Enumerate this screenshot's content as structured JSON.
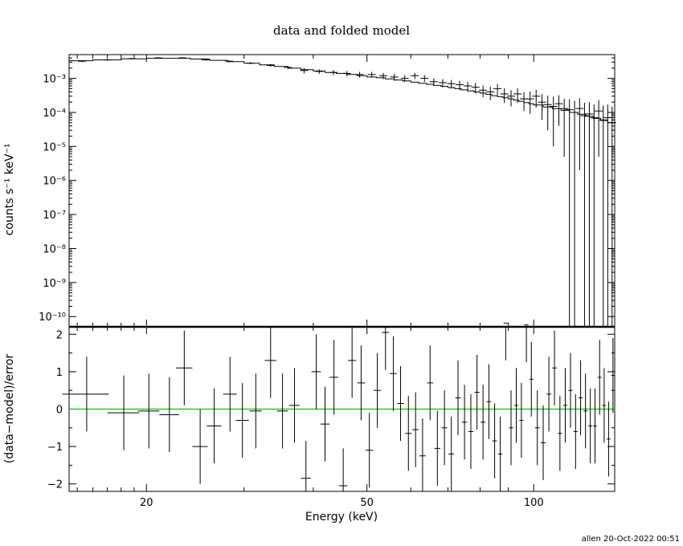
{
  "chart_data": [
    {
      "panel": "top",
      "type": "scatter",
      "title": "data and folded model",
      "ylabel": "counts s⁻¹ keV⁻¹",
      "xscale": "log",
      "yscale": "log",
      "xlim": [
        14.5,
        140
      ],
      "ylim": [
        5e-11,
        0.005
      ],
      "ytick_labels": [
        "10⁻¹⁰",
        "10⁻⁹",
        "10⁻⁸",
        "10⁻⁷",
        "10⁻⁶",
        "10⁻⁵",
        "10⁻⁴",
        "10⁻³"
      ],
      "ytick_values": [
        1e-10,
        1e-09,
        1e-08,
        1e-07,
        1e-06,
        1e-05,
        0.0001,
        0.001
      ],
      "series": [
        {
          "kind": "data_with_errors",
          "x": [
            15.3,
            17.0,
            18.8,
            21.0,
            23.2,
            25.6,
            28.2,
            30.8,
            33.5,
            36.0,
            38.5,
            41.0,
            43.5,
            46.0,
            48.5,
            51.0,
            53.5,
            56.0,
            58.5,
            61.0,
            63.5,
            66.0,
            68.5,
            71.0,
            73.5,
            76.0,
            78.5,
            81.0,
            83.5,
            86.0,
            88.5,
            91.0,
            93.5,
            96.0,
            98.5,
            101.0,
            103.5,
            106.0,
            108.5,
            111.0,
            113.5,
            116.0,
            118.5,
            121.0,
            123.5,
            126.0,
            128.5,
            131.0,
            133.5,
            136.0,
            138.5
          ],
          "y": [
            0.0032,
            0.0035,
            0.0038,
            0.004,
            0.004,
            0.0035,
            0.0032,
            0.0028,
            0.0024,
            0.0021,
            0.0017,
            0.0016,
            0.0015,
            0.0014,
            0.0013,
            0.0013,
            0.0012,
            0.0011,
            0.001,
            0.0012,
            0.001,
            0.0008,
            0.00075,
            0.0007,
            0.00065,
            0.0006,
            0.00055,
            0.00045,
            0.0004,
            0.0005,
            0.00035,
            0.0003,
            0.00035,
            0.00025,
            0.00025,
            0.0003,
            0.0002,
            0.00017,
            0.00015,
            0.00018,
            0.00013,
            0.00012,
            0.0001,
            0.00013,
            8e-05,
            9e-05,
            7e-05,
            0.00011,
            6e-05,
            7e-05,
            5e-05
          ],
          "yerr_low": [
            0.003,
            0.0033,
            0.0036,
            0.0038,
            0.0038,
            0.0033,
            0.003,
            0.0026,
            0.0022,
            0.0019,
            0.0014,
            0.00135,
            0.00125,
            0.00115,
            0.00105,
            0.00105,
            0.00095,
            0.00085,
            0.00078,
            0.00095,
            0.00078,
            0.0006,
            0.00055,
            0.0005,
            0.00045,
            0.00041,
            0.00036,
            0.00028,
            0.00023,
            0.00032,
            0.00019,
            0.00015,
            0.00019,
            0.00011,
            9e-05,
            0.00014,
            6e-05,
            3e-05,
            1e-05,
            4e-05,
            5e-06,
            5e-11,
            5e-11,
            2e-06,
            5e-11,
            5e-11,
            5e-11,
            5e-06,
            5e-11,
            5e-11,
            5e-11
          ],
          "yerr_high": [
            0.0034,
            0.0037,
            0.004,
            0.0042,
            0.0042,
            0.0037,
            0.0034,
            0.003,
            0.0026,
            0.0023,
            0.002,
            0.00185,
            0.00175,
            0.00165,
            0.00155,
            0.00155,
            0.00145,
            0.00135,
            0.00125,
            0.00145,
            0.00125,
            0.001,
            0.00095,
            0.0009,
            0.00085,
            0.00079,
            0.00074,
            0.00062,
            0.00057,
            0.00068,
            0.00051,
            0.00045,
            0.00051,
            0.00039,
            0.00041,
            0.00046,
            0.00034,
            0.00031,
            0.00029,
            0.00032,
            0.00025,
            0.00024,
            0.00022,
            0.00026,
            0.00019,
            0.0002,
            0.00017,
            0.00023,
            0.00016,
            0.00017,
            0.00015
          ]
        },
        {
          "kind": "model_step",
          "x": [
            14.5,
            16.0,
            18.0,
            20.0,
            22.0,
            24.0,
            26.0,
            28.0,
            30.0,
            32.0,
            34.0,
            36.0,
            38.0,
            40.0,
            42.0,
            44.0,
            46.0,
            48.0,
            50.0,
            52.0,
            54.0,
            56.0,
            58.0,
            60.0,
            62.0,
            64.0,
            66.0,
            68.0,
            70.0,
            72.0,
            74.0,
            76.0,
            78.0,
            80.0,
            82.0,
            84.0,
            86.0,
            88.0,
            90.0,
            92.0,
            94.0,
            96.0,
            98.0,
            100.0,
            104.0,
            108.0,
            112.0,
            116.0,
            120.0,
            124.0,
            128.0,
            132.0,
            136.0,
            140.0
          ],
          "y": [
            0.0033,
            0.0035,
            0.00375,
            0.0039,
            0.0039,
            0.0037,
            0.0034,
            0.0031,
            0.0028,
            0.0025,
            0.00225,
            0.002,
            0.0018,
            0.00165,
            0.0015,
            0.0014,
            0.0013,
            0.0012,
            0.0011,
            0.00105,
            0.00097,
            0.0009,
            0.00084,
            0.00078,
            0.00072,
            0.00067,
            0.00062,
            0.00058,
            0.00054,
            0.0005,
            0.00046,
            0.00043,
            0.0004,
            0.00037,
            0.00034,
            0.00031,
            0.00029,
            0.00027,
            0.00025,
            0.00023,
            0.00021,
            0.000195,
            0.00018,
            0.000165,
            0.000145,
            0.00013,
            0.000115,
            0.0001,
            8.8e-05,
            7.7e-05,
            6.7e-05,
            5.8e-05,
            5e-05,
            4.3e-05
          ]
        }
      ]
    },
    {
      "panel": "bottom",
      "type": "scatter",
      "xlabel": "Energy (keV)",
      "ylabel": "(data−model)/error",
      "xscale": "log",
      "xlim": [
        14.5,
        140
      ],
      "ylim": [
        -2.2,
        2.2
      ],
      "ytick_values": [
        -2,
        -1,
        0,
        1,
        2
      ],
      "ytick_labels": [
        "−2",
        "−1",
        "0",
        "1",
        "2"
      ],
      "xtick_values": [
        20,
        50,
        100
      ],
      "xtick_labels": [
        "20",
        "50",
        "100"
      ],
      "reference_line": {
        "y": 0,
        "color": "#00cc00"
      },
      "series": [
        {
          "kind": "residuals",
          "x": [
            15.6,
            18.2,
            20.2,
            22.0,
            23.4,
            25.0,
            26.5,
            28.3,
            29.8,
            31.5,
            33.5,
            35.2,
            37.0,
            38.8,
            40.5,
            42.0,
            43.6,
            45.3,
            47.0,
            48.8,
            50.5,
            52.2,
            54.0,
            55.8,
            57.5,
            59.4,
            61.2,
            63.0,
            65.0,
            67.0,
            69.0,
            71.0,
            73.0,
            75.0,
            77.0,
            79.0,
            81.0,
            83.0,
            85.0,
            87.0,
            89.0,
            91.0,
            93.0,
            95.0,
            97.0,
            99.0,
            101.5,
            104.0,
            106.5,
            109.0,
            111.5,
            114.0,
            116.5,
            119.0,
            121.5,
            124.0,
            126.5,
            129.0,
            131.5,
            134.0,
            136.5,
            139.0
          ],
          "y": [
            0.4,
            -0.1,
            -0.05,
            -0.15,
            1.1,
            -1.0,
            -0.45,
            0.4,
            -0.3,
            -0.05,
            1.3,
            -0.05,
            0.1,
            -1.85,
            1.0,
            -0.4,
            0.85,
            -2.05,
            1.3,
            0.7,
            -1.1,
            0.5,
            2.05,
            0.95,
            0.15,
            -0.65,
            -0.55,
            -1.25,
            0.7,
            -1.05,
            -0.5,
            -1.2,
            0.3,
            -0.35,
            -0.6,
            0.45,
            -0.35,
            0.2,
            -0.85,
            -1.2,
            2.3,
            -0.5,
            0.1,
            -0.3,
            2.25,
            0.8,
            -0.5,
            -0.9,
            0.4,
            1.1,
            -0.65,
            0.1,
            0.5,
            -0.6,
            0.3,
            -0.05,
            -0.45,
            -0.45,
            0.85,
            0.1,
            -0.8,
            0.9
          ],
          "err": [
            1.0,
            1.0,
            1.0,
            1.0,
            1.0,
            1.0,
            1.0,
            1.0,
            1.0,
            1.0,
            1.0,
            1.0,
            1.0,
            1.0,
            1.0,
            1.0,
            1.0,
            1.0,
            1.0,
            1.0,
            1.0,
            1.0,
            1.0,
            1.0,
            1.0,
            1.0,
            1.0,
            1.0,
            1.0,
            1.0,
            1.0,
            1.0,
            1.0,
            1.0,
            1.0,
            1.0,
            1.0,
            1.0,
            1.0,
            1.0,
            1.0,
            1.0,
            1.0,
            1.0,
            1.0,
            1.0,
            1.0,
            1.0,
            1.0,
            1.0,
            1.0,
            1.0,
            1.0,
            1.0,
            1.0,
            1.0,
            1.0,
            1.0,
            1.0,
            1.0,
            1.0,
            1.0
          ],
          "xhalf": [
            1.5,
            1.2,
            0.9,
            0.9,
            0.8,
            0.8,
            0.8,
            0.8,
            0.8,
            0.8,
            0.8,
            0.8,
            0.8,
            0.8,
            0.8,
            0.8,
            0.8,
            0.8,
            0.8,
            0.8,
            0.8,
            0.8,
            0.8,
            0.8,
            0.8,
            0.8,
            0.8,
            0.8,
            0.8,
            0.8,
            0.8,
            0.8,
            0.8,
            0.8,
            0.8,
            0.8,
            0.8,
            0.8,
            0.8,
            0.8,
            0.8,
            0.8,
            0.8,
            0.8,
            0.8,
            0.8,
            1.0,
            1.0,
            1.0,
            1.0,
            1.0,
            1.0,
            1.0,
            1.0,
            1.0,
            1.0,
            1.0,
            1.0,
            1.0,
            1.0,
            1.0,
            1.0
          ]
        }
      ]
    }
  ],
  "credit": "allen 20-Oct-2022 00:51"
}
